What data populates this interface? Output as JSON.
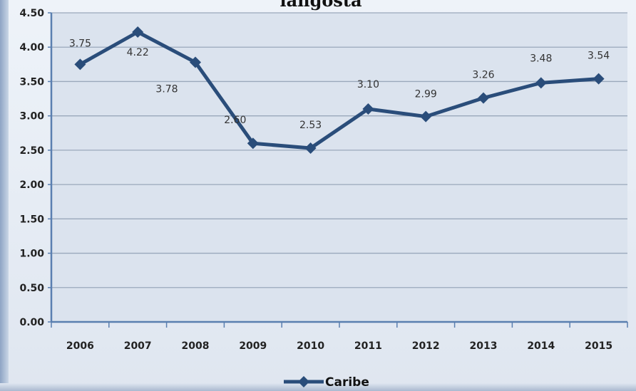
{
  "chart_data": {
    "type": "line",
    "title": "langosta",
    "categories": [
      "2006",
      "2007",
      "2008",
      "2009",
      "2010",
      "2011",
      "2012",
      "2013",
      "2014",
      "2015"
    ],
    "series": [
      {
        "name": "Caribe",
        "values": [
          3.75,
          4.22,
          3.78,
          2.6,
          2.53,
          3.1,
          2.99,
          3.26,
          3.48,
          3.54
        ],
        "labels": [
          "3.75",
          "4.22",
          "3.78",
          "2.60",
          "2.53",
          "3.10",
          "2.99",
          "3.26",
          "3.48",
          "3.54"
        ]
      }
    ],
    "yticks": [
      "0.00",
      "0.50",
      "1.00",
      "1.50",
      "2.00",
      "2.50",
      "3.00",
      "3.50",
      "4.00",
      "4.50"
    ],
    "ylim": [
      0,
      4.5
    ],
    "grid": true,
    "legend": "bottom",
    "colors": {
      "line": "#2a4d7a",
      "plot_bg": "#dbe3ee",
      "grid": "#9aa8bb",
      "axis": "#5a7fb0"
    }
  }
}
